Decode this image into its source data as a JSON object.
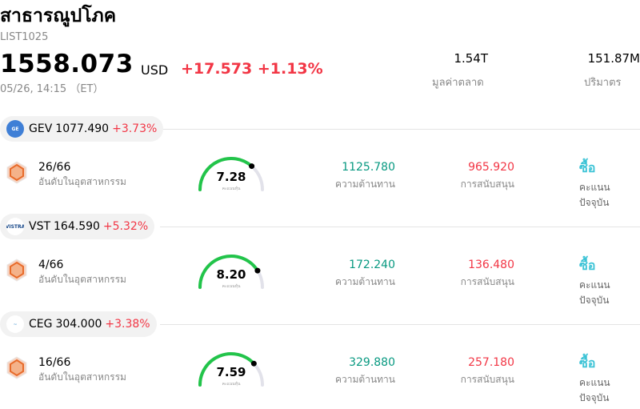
{
  "header": {
    "title": "สาธารณูปโภค",
    "code": "LIST1025",
    "price": "1558.073",
    "currency": "USD",
    "change": "+17.573 +1.13%",
    "time": "05/26, 14:15 （ET）",
    "market_cap_value": "1.54T",
    "market_cap_label": "มูลค่าตลาด",
    "volume_value": "151.87M",
    "volume_label": "ปริมาตร"
  },
  "colors": {
    "up": "#f23645",
    "resistance": "#089981",
    "buy": "#3cc3d6",
    "gauge": "#22c44a"
  },
  "labels": {
    "rank": "อันดับในอุตสาหกรรม",
    "gauge": "คะแนนหุ้น",
    "resistance": "ความต้านทาน",
    "support": "การสนับสนุน",
    "buy": "ซื้อ",
    "score": "คะแนนปัจจุบัน"
  },
  "stocks": [
    {
      "symbol": "GEV",
      "price": "1077.490",
      "pct": "+3.73%",
      "logo": "ge-logo-icon",
      "rank": "26/66",
      "score": "7.28",
      "score_fraction": 0.728,
      "resistance": "1125.780",
      "support": "965.920"
    },
    {
      "symbol": "VST",
      "price": "164.590",
      "pct": "+5.32%",
      "logo": "vistra-logo-icon",
      "rank": "4/66",
      "score": "8.20",
      "score_fraction": 0.82,
      "resistance": "172.240",
      "support": "136.480"
    },
    {
      "symbol": "CEG",
      "price": "304.000",
      "pct": "+3.38%",
      "logo": "constellation-logo-icon",
      "rank": "16/66",
      "score": "7.59",
      "score_fraction": 0.759,
      "resistance": "329.880",
      "support": "257.180"
    }
  ]
}
